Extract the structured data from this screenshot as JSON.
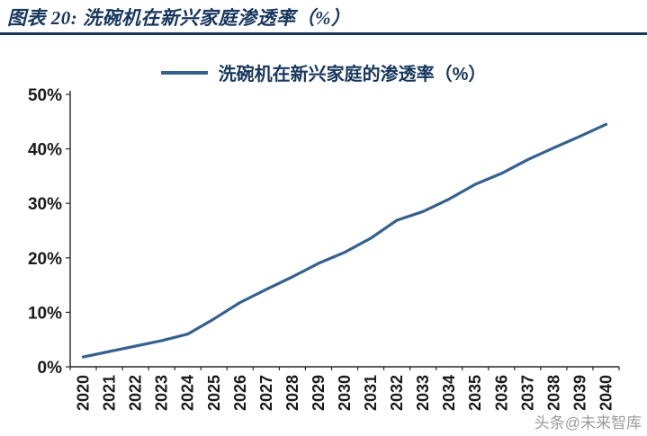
{
  "header": {
    "title": "图表 20:  洗碗机在新兴家庭渗透率（%）"
  },
  "legend": {
    "label": "洗碗机在新兴家庭的渗透率（%）"
  },
  "watermark": {
    "text": "头条@未来智库"
  },
  "colors": {
    "line": "#36618F",
    "navy": "#17375E",
    "axis": "#262626",
    "watermark": "#9b9b9b"
  },
  "chart_data": {
    "type": "line",
    "title": "洗碗机在新兴家庭的渗透率（%）",
    "xlabel": "",
    "ylabel": "",
    "categories": [
      "2020",
      "2021",
      "2022",
      "2023",
      "2024",
      "2025",
      "2026",
      "2027",
      "2028",
      "2029",
      "2030",
      "2031",
      "2032",
      "2033",
      "2034",
      "2035",
      "2036",
      "2037",
      "2038",
      "2039",
      "2040"
    ],
    "values": [
      1.8,
      2.8,
      3.8,
      4.8,
      6.0,
      8.8,
      11.8,
      14.2,
      16.5,
      19.0,
      21.0,
      23.6,
      26.9,
      28.5,
      30.8,
      33.5,
      35.5,
      38.0,
      40.2,
      42.3,
      44.5
    ],
    "ylim": [
      0,
      50
    ],
    "yticks": [
      "0%",
      "10%",
      "20%",
      "30%",
      "40%",
      "50%"
    ],
    "grid": false,
    "legend_position": "top"
  }
}
